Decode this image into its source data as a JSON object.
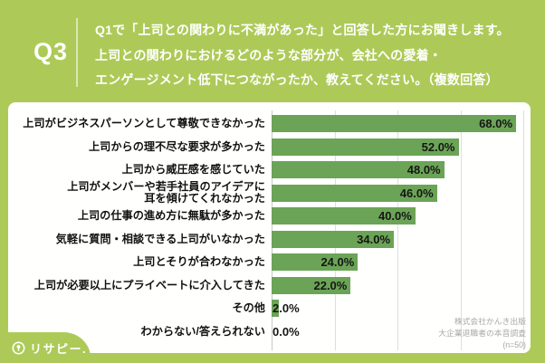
{
  "colors": {
    "brand_green": "#adca58",
    "bar_green": "#6ba456",
    "grid_line": "#dedede",
    "axis_line": "#c9c9c9",
    "source_text": "#a8a8a8"
  },
  "header": {
    "q_label": "Q3",
    "question_text": "Q1で「上司との関わりに不満があった」と回答した方にお聞きします。\n上司との関わりにおけるどのような部分が、会社への愛着・\nエンゲージメント低下につながったか、教えてください。（複数回答）"
  },
  "chart_data": {
    "type": "bar",
    "orientation": "horizontal",
    "categories": [
      "上司がビジネスパーソンとして尊敬できなかった",
      "上司からの理不尽な要求が多かった",
      "上司から威圧感を感じていた",
      "上司がメンバーや若手社員のアイデアに\n耳を傾けてくれなかった",
      "上司の仕事の進め方に無駄が多かった",
      "気軽に質問・相談できる上司がいなかった",
      "上司とそりが合わなかった",
      "上司が必要以上にプライベートに介入してきた",
      "その他",
      "わからない/答えられない"
    ],
    "values": [
      68,
      52,
      48,
      46,
      40,
      34,
      24,
      22,
      2,
      0
    ],
    "value_labels": [
      "68.0%",
      "52.0%",
      "48.0%",
      "46.0%",
      "40.0%",
      "34.0%",
      "24.0%",
      "22.0%",
      "2.0%",
      "0.0%"
    ],
    "xlim": [
      0,
      70
    ],
    "gridline_positions_pct": [
      25,
      50,
      75,
      100
    ],
    "grid": "vertical light-gray lines",
    "legend": "none",
    "value_label_placement": "inside end (outside for values < 20)"
  },
  "footer": {
    "logo_text": "リサピー.",
    "source_text": "株式会社かんき出版\n大企業退職者の本音調査\n(n=50)"
  }
}
